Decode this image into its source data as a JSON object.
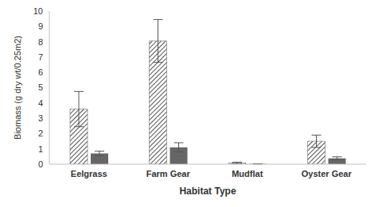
{
  "chart_data": {
    "type": "bar",
    "x_label": "Habitat Type",
    "y_label": "Biomass (g dry wt/0.25m2)",
    "categories": [
      "Eelgrass",
      "Farm Gear",
      "Mudflat",
      "Oyster Gear"
    ],
    "series": [
      {
        "color": "#555555",
        "values": [
          3.6,
          8.05,
          0.08,
          1.5
        ],
        "error": [
          1.15,
          1.4,
          0.05,
          0.4
        ]
      },
      {
        "color": "#666666",
        "values": [
          0.7,
          1.1,
          0.02,
          0.38
        ],
        "error": [
          0.15,
          0.3,
          0.01,
          0.1
        ]
      }
    ],
    "ylim": [
      0,
      10
    ],
    "yticks": [
      0,
      1,
      2,
      3,
      4,
      5,
      6,
      7,
      8,
      9,
      10
    ],
    "grid": false
  }
}
